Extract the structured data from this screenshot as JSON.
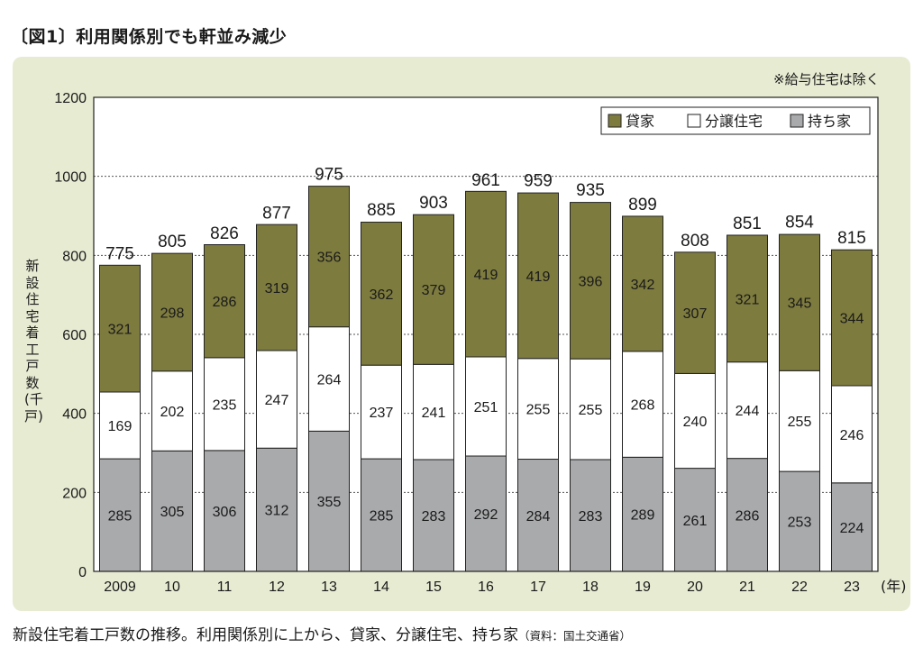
{
  "figure": {
    "title": "〔図1〕利用関係別でも軒並み減少",
    "note": "※給与住宅は除く",
    "caption": "新設住宅着工戸数の推移。利用関係別に上から、貸家、分譲住宅、持ち家",
    "source": "（資料：国土交通省）"
  },
  "colors": {
    "rental": "#7d7b3e",
    "condo": "#ffffff",
    "owner": "#a9aaac",
    "panel": "#e7ebd2"
  },
  "chart_data": {
    "type": "bar",
    "stacked": true,
    "categories": [
      "2009",
      "10",
      "11",
      "12",
      "13",
      "14",
      "15",
      "16",
      "17",
      "18",
      "19",
      "20",
      "21",
      "22",
      "23"
    ],
    "x_unit": "(年)",
    "ylabel": "新設住宅着工戸数(千戸)",
    "ylim": [
      0,
      1200
    ],
    "yticks": [
      0,
      200,
      400,
      600,
      800,
      1000,
      1200
    ],
    "grid": "horizontal dashed",
    "legend_position": "top-right",
    "totals": [
      775,
      805,
      826,
      877,
      975,
      885,
      903,
      961,
      959,
      935,
      899,
      808,
      851,
      854,
      815
    ],
    "series": [
      {
        "name": "持ち家",
        "color": "#a9aaac",
        "values": [
          285,
          305,
          306,
          312,
          355,
          285,
          283,
          292,
          284,
          283,
          289,
          261,
          286,
          253,
          224
        ]
      },
      {
        "name": "分譲住宅",
        "color": "#ffffff",
        "values": [
          169,
          202,
          235,
          247,
          264,
          237,
          241,
          251,
          255,
          255,
          268,
          240,
          244,
          255,
          246
        ]
      },
      {
        "name": "貸家",
        "color": "#7d7b3e",
        "values": [
          321,
          298,
          286,
          319,
          356,
          362,
          379,
          419,
          419,
          396,
          342,
          307,
          321,
          345,
          344
        ]
      }
    ],
    "legend": [
      "貸家",
      "分譲住宅",
      "持ち家"
    ]
  }
}
